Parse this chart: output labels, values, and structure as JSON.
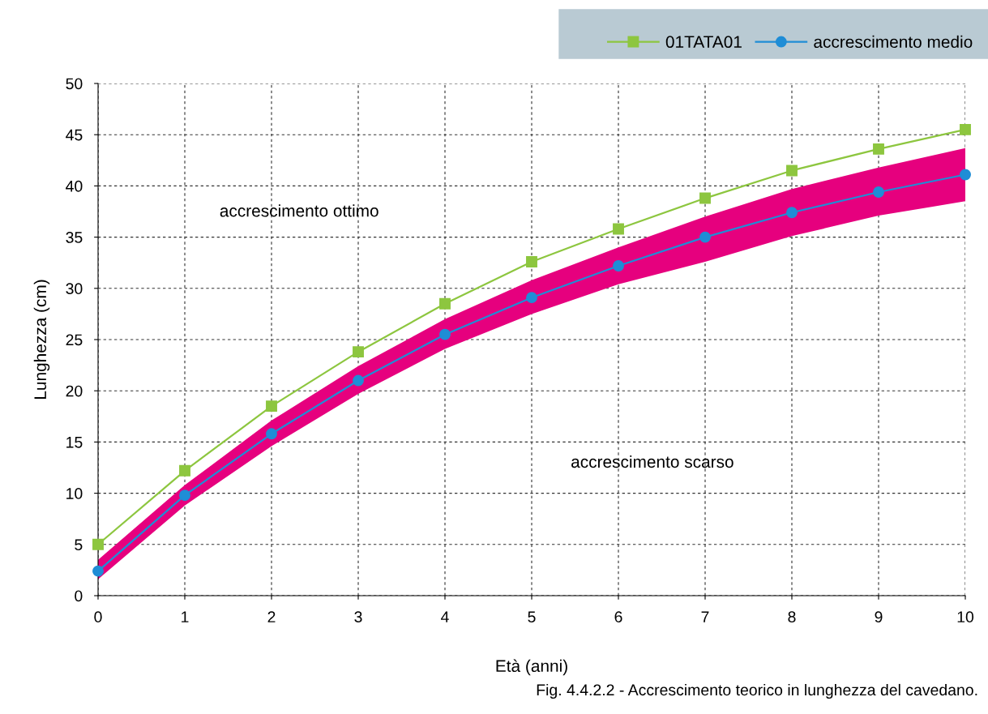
{
  "chart_data": {
    "type": "line",
    "xlabel": "Età (anni)",
    "ylabel": "Lunghezza (cm)",
    "x": [
      0,
      1,
      2,
      3,
      4,
      5,
      6,
      7,
      8,
      9,
      10
    ],
    "series": [
      {
        "name": "01TATA01",
        "color": "#8dc63f",
        "marker": "square",
        "values": [
          5.0,
          12.2,
          18.5,
          23.8,
          28.5,
          32.6,
          35.8,
          38.8,
          41.5,
          43.6,
          45.5
        ]
      },
      {
        "type": "area",
        "color": "#e6007e",
        "values": [
          null,
          null,
          null,
          null,
          null,
          null,
          null,
          null,
          null,
          null,
          null
        ],
        "upper": [
          3.5,
          10.8,
          17.1,
          22.4,
          27.0,
          30.8,
          34.0,
          37.0,
          39.7,
          41.8,
          43.7
        ],
        "lower": [
          1.6,
          8.8,
          14.6,
          19.7,
          24.1,
          27.5,
          30.4,
          32.6,
          35.1,
          37.1,
          38.5
        ]
      },
      {
        "name": "accrescimento medio",
        "color": "#1f8dd6",
        "marker": "circle",
        "values": [
          2.4,
          9.8,
          15.8,
          21.0,
          25.5,
          29.1,
          32.2,
          35.0,
          37.4,
          39.4,
          41.1
        ]
      }
    ],
    "xlim": [
      0,
      10
    ],
    "xticks": [
      0,
      1,
      2,
      3,
      4,
      5,
      6,
      7,
      8,
      9,
      10
    ],
    "ylim": [
      0,
      50
    ],
    "yticks": [
      0,
      5,
      10,
      15,
      20,
      25,
      30,
      35,
      40,
      45,
      50
    ],
    "grid": true,
    "legend": "top right",
    "line_style": "solid",
    "annotations": [
      "accrescimento ottimo",
      "accrescimento scarso",
      "Fig. 4.4.2.2 - Accrescimento teorico in lunghezza del cavedano."
    ]
  }
}
